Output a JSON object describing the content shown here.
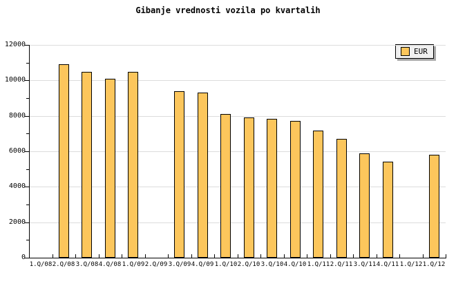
{
  "title": "Gibanje vrednosti vozila po kvartalih",
  "legend": {
    "label": "EUR"
  },
  "colors": {
    "bar_fill": "#fcc65c",
    "bar_border": "#000000",
    "gridline": "#dcdcdc",
    "axis": "#000000",
    "legend_bg": "#f0f0f0",
    "legend_shadow": "#a9a9a9",
    "background": "#ffffff",
    "text": "#000000"
  },
  "chart_data": {
    "type": "bar",
    "title": "Gibanje vrednosti vozila po kvartalih",
    "categories": [
      "1.Q/08",
      "2.Q/08",
      "3.Q/08",
      "4.Q/08",
      "1.Q/09",
      "2.Q/09",
      "3.Q/09",
      "4.Q/09",
      "1.Q/10",
      "2.Q/10",
      "3.Q/10",
      "4.Q/10",
      "1.Q/11",
      "2.Q/11",
      "3.Q/11",
      "4.Q/11",
      "1.Q/12",
      "1.Q/12"
    ],
    "series": [
      {
        "name": "EUR",
        "values": [
          null,
          10900,
          10500,
          10100,
          10500,
          null,
          9400,
          9300,
          8100,
          7900,
          7850,
          7700,
          7150,
          6700,
          5900,
          5400,
          null,
          5800
        ]
      }
    ],
    "xlabel": "",
    "ylabel": "",
    "ylim": [
      0,
      12000
    ],
    "y_major_step": 2000,
    "y_minor_step": 1000,
    "y_tick_labels": [
      "0",
      "2000",
      "4000",
      "6000",
      "8000",
      "10000",
      "12000"
    ],
    "grid": true,
    "legend_position": "top-right"
  }
}
